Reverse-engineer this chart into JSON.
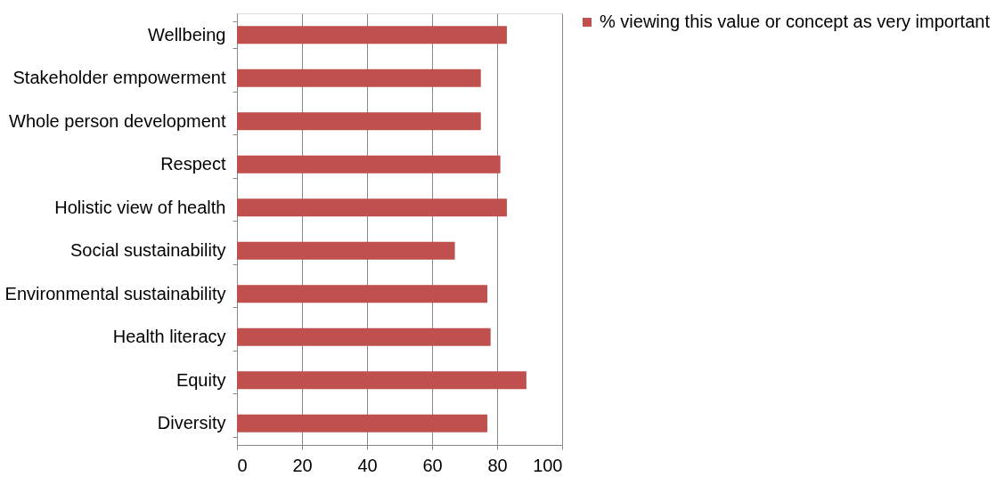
{
  "chart_data": {
    "type": "bar",
    "orientation": "horizontal",
    "categories": [
      "Wellbeing",
      "Stakeholder empowerment",
      "Whole person development",
      "Respect",
      "Holistic view of health",
      "Social sustainability",
      "Environmental sustainability",
      "Health literacy",
      "Equity",
      "Diversity"
    ],
    "series": [
      {
        "name": "% viewing this value or concept as very important",
        "color": "#c0504d",
        "values": [
          83,
          75,
          75,
          81,
          83,
          67,
          77,
          78,
          89,
          77
        ]
      }
    ],
    "xlim": [
      0,
      100
    ],
    "xticks": [
      0,
      20,
      40,
      60,
      80,
      100
    ],
    "grid": "x",
    "legend": "right"
  }
}
